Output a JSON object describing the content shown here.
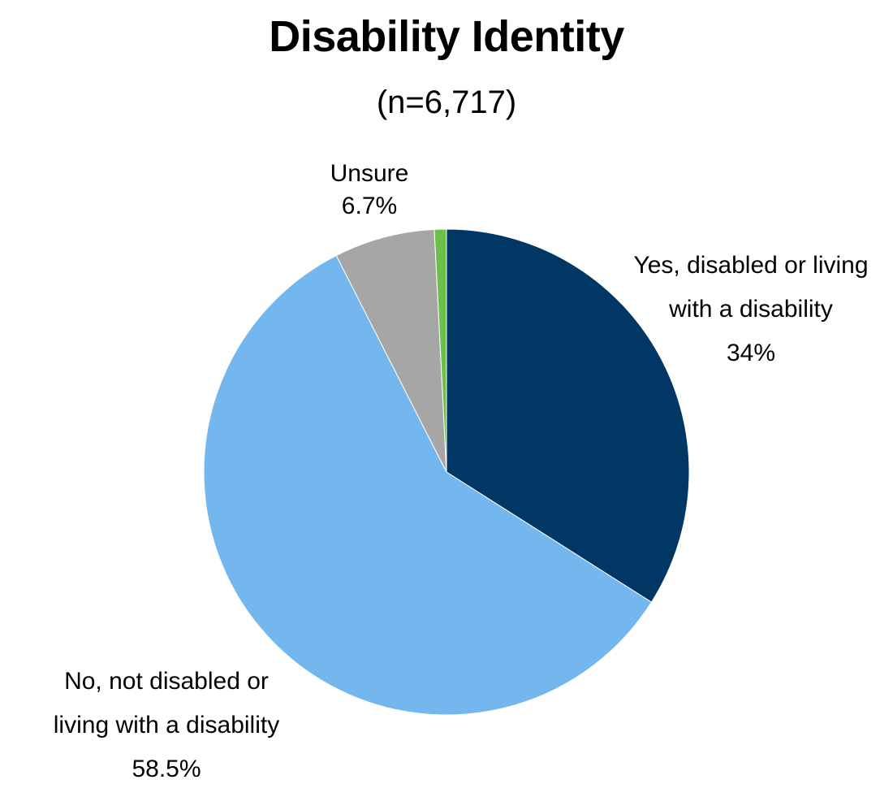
{
  "chart_data": {
    "type": "pie",
    "title": "Disability Identity",
    "subtitle": "(n=6,717)",
    "slices": [
      {
        "name": "Yes, disabled or living with a disability",
        "label_lines": [
          "Yes, disabled or living",
          "with a disability"
        ],
        "value": 34,
        "value_label": "34%",
        "color": "#003764"
      },
      {
        "name": "No, not disabled or living with a disability",
        "label_lines": [
          "No, not disabled or",
          "living with a disability"
        ],
        "value": 58.5,
        "value_label": "58.5%",
        "color": "#74B7EE"
      },
      {
        "name": "Unsure",
        "label_lines": [
          "Unsure"
        ],
        "value": 6.7,
        "value_label": "6.7%",
        "color": "#A6A6A6"
      },
      {
        "name": "",
        "label_lines": [],
        "value": 0.8,
        "value_label": "",
        "color": "#6CC04A"
      }
    ],
    "legend": "none"
  }
}
